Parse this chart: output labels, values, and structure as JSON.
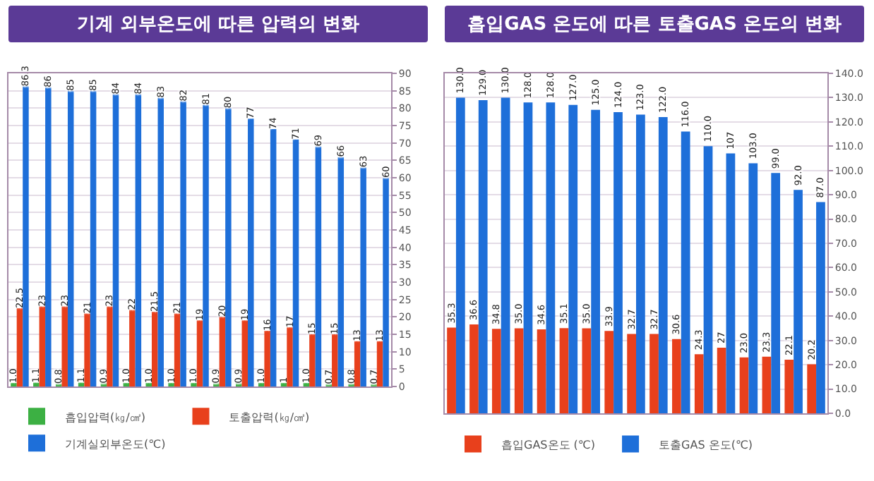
{
  "chart_data": [
    {
      "type": "bar",
      "title": "기계 외부온도에 따른 압력의 변화",
      "categories": [
        null,
        null,
        null,
        null,
        null,
        null,
        null,
        null,
        null,
        null,
        null,
        null,
        null,
        null,
        null,
        null,
        null
      ],
      "series": [
        {
          "name": "흡입압력(㎏/㎠)",
          "color": "#3cb043",
          "values": [
            1.0,
            1.1,
            0.8,
            1.1,
            0.9,
            1.0,
            1.0,
            1.0,
            1.0,
            0.9,
            0.9,
            1.0,
            1,
            1.0,
            0.7,
            0.8,
            0.7
          ],
          "value_labels": [
            "1.0",
            "1.1",
            "0.8",
            "1.1",
            "0.9",
            "1.0",
            "1.0",
            "1.0",
            "1.0",
            "0.9",
            "0.9",
            "1.0",
            "1",
            "1.0",
            "0.7",
            "0.8",
            "0.7"
          ]
        },
        {
          "name": "토출압력(㎏/㎠)",
          "color": "#e8401c",
          "values": [
            22.5,
            23,
            23,
            21,
            23,
            22,
            21.5,
            21,
            19,
            20,
            19,
            16,
            17,
            15,
            15,
            13,
            13
          ],
          "value_labels": [
            "22.5",
            "23",
            "23",
            "21",
            "23",
            "22",
            "21.5",
            "21",
            "19",
            "20",
            "19",
            "16",
            "17",
            "15",
            "15",
            "13",
            "13"
          ]
        },
        {
          "name": "기계실외부온도(℃)",
          "color": "#1e6fd9",
          "values": [
            86.3,
            86,
            85,
            85,
            84,
            84,
            83,
            82,
            81,
            80,
            77,
            74,
            71,
            69,
            66,
            63,
            60
          ],
          "value_labels": [
            "86.3",
            "86",
            "85",
            "85",
            "84",
            "84",
            "83",
            "82",
            "81",
            "80",
            "77",
            "74",
            "71",
            "69",
            "66",
            "63",
            "60"
          ]
        }
      ],
      "ylim": [
        0,
        90
      ],
      "yticks": [
        0,
        5,
        10,
        15,
        20,
        25,
        30,
        35,
        40,
        45,
        50,
        55,
        60,
        65,
        70,
        75,
        80,
        85,
        90
      ],
      "grid": "y",
      "legend": "bottom"
    },
    {
      "type": "bar",
      "title": "흡입GAS 온도에 따른 토출GAS 온도의 변화",
      "categories": [
        null,
        null,
        null,
        null,
        null,
        null,
        null,
        null,
        null,
        null,
        null,
        null,
        null,
        null,
        null,
        null,
        null
      ],
      "series": [
        {
          "name": "흡입GAS온도 (℃)",
          "color": "#e8401c",
          "values": [
            35.3,
            36.6,
            34.8,
            35.0,
            34.6,
            35.1,
            35.0,
            33.9,
            32.7,
            32.7,
            30.6,
            24.3,
            27,
            23.0,
            23.3,
            22.1,
            20.2
          ],
          "value_labels": [
            "35.3",
            "36.6",
            "34.8",
            "35.0",
            "34.6",
            "35.1",
            "35.0",
            "33.9",
            "32.7",
            "32.7",
            "30.6",
            "24.3",
            "27",
            "23.0",
            "23.3",
            "22.1",
            "20.2"
          ]
        },
        {
          "name": "토출GAS 온도(℃)",
          "color": "#1e6fd9",
          "values": [
            130.0,
            129.0,
            130.0,
            128.0,
            128.0,
            127.0,
            125.0,
            124.0,
            123.0,
            122.0,
            116.0,
            110.0,
            107,
            103.0,
            99.0,
            92.0,
            87.0
          ],
          "value_labels": [
            "130.0",
            "129.0",
            "130.0",
            "128.0",
            "128.0",
            "127.0",
            "125.0",
            "124.0",
            "123.0",
            "122.0",
            "116.0",
            "110.0",
            "107",
            "103.0",
            "99.0",
            "92.0",
            "87.0"
          ]
        }
      ],
      "ylim": [
        0,
        140
      ],
      "yticks": [
        {
          "value": 0,
          "label": "0.0"
        },
        {
          "value": 10,
          "label": "10.0"
        },
        {
          "value": 20,
          "label": "20.0"
        },
        {
          "value": 30,
          "label": "30.0"
        },
        {
          "value": 40,
          "label": "40.0"
        },
        {
          "value": 50,
          "label": "50.0"
        },
        {
          "value": 60,
          "label": "60.0"
        },
        {
          "value": 70,
          "label": "70.0"
        },
        {
          "value": 80,
          "label": "80.0"
        },
        {
          "value": 90,
          "label": "90.0"
        },
        {
          "value": 100,
          "label": "100.0"
        },
        {
          "value": 110,
          "label": "110.0"
        },
        {
          "value": 120,
          "label": "120.0"
        },
        {
          "value": 130,
          "label": "130.0"
        },
        {
          "value": 140,
          "label": "140.0"
        }
      ],
      "grid": "y",
      "legend": "bottom"
    }
  ]
}
